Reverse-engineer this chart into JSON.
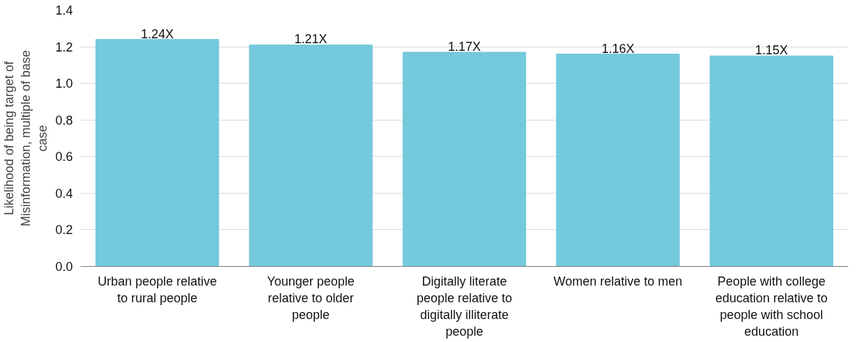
{
  "chart_data": {
    "type": "bar",
    "ylabel": "Likelihood of being target of Misinformation, multiple of base case",
    "categories": [
      "Urban people relative to rural people",
      "Younger people relative to older people",
      "Digitally literate people relative to digitally illiterate people",
      "Women relative to men",
      "People with college education relative to people with school education"
    ],
    "values": [
      1.24,
      1.21,
      1.17,
      1.16,
      1.15
    ],
    "value_labels": [
      "1.24X",
      "1.21X",
      "1.17X",
      "1.16X",
      "1.15X"
    ],
    "color": "#74c9dc",
    "ylim": [
      0,
      1.4
    ],
    "yticks": [
      {
        "value": 0,
        "label": "0.0"
      },
      0.2,
      0.4,
      0.6,
      0.8,
      {
        "value": 1,
        "label": "1.0"
      },
      1.2,
      1.4
    ],
    "grid": "y"
  }
}
